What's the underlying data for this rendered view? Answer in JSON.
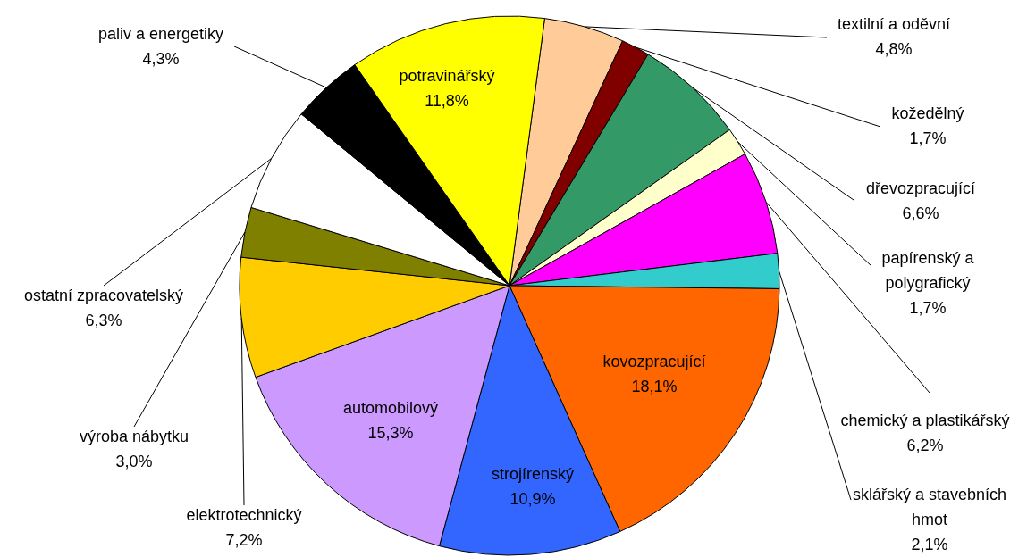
{
  "chart_data": {
    "type": "pie",
    "categories": [
      "textilní a oděvní",
      "kožedělný",
      "dřevozpracující",
      "papírenský a polygrafický",
      "chemický a plastikářský",
      "sklářský a stavebních hmot",
      "kovozpracující",
      "strojírenský",
      "automobilový",
      "elektrotechnický",
      "výroba nábytku",
      "ostatní zpracovatelský",
      "paliv a energetiky",
      "potravinářský"
    ],
    "values": [
      4.8,
      1.7,
      6.6,
      1.7,
      6.2,
      2.1,
      18.1,
      10.9,
      15.3,
      7.2,
      3.0,
      6.3,
      4.3,
      11.8
    ],
    "value_labels": [
      "4,8%",
      "1,7%",
      "6,6%",
      "1,7%",
      "6,2%",
      "2,1%",
      "18,1%",
      "10,9%",
      "15,3%",
      "7,2%",
      "3,0%",
      "6,3%",
      "4,3%",
      "11,8%"
    ],
    "colors": [
      "#ffcc99",
      "#800000",
      "#339966",
      "#ffffcc",
      "#ff00ff",
      "#33cccc",
      "#ff6600",
      "#3366ff",
      "#cc99ff",
      "#ffcc00",
      "#808000",
      "#ffffff",
      "#000000",
      "#ffff00"
    ]
  }
}
